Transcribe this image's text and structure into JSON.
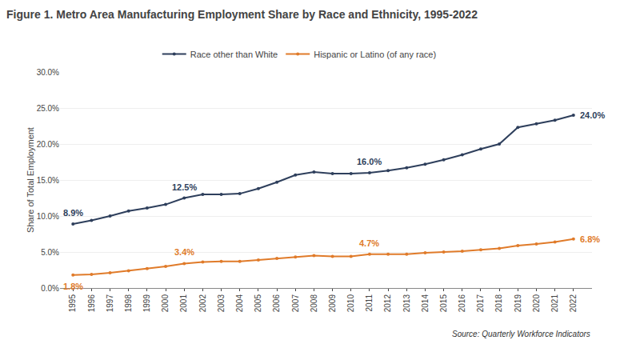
{
  "chart_data": {
    "type": "line",
    "title": "Figure 1. Metro Area Manufacturing Employment Share by Race and Ethnicity, 1995-2022",
    "ylabel": "Share of Total Employment",
    "source": "Source: Quarterly Workforce Indicators",
    "x": [
      1995,
      1996,
      1997,
      1998,
      1999,
      2000,
      2001,
      2002,
      2003,
      2004,
      2005,
      2006,
      2007,
      2008,
      2009,
      2010,
      2011,
      2012,
      2013,
      2014,
      2015,
      2016,
      2017,
      2018,
      2019,
      2020,
      2021,
      2022
    ],
    "series": [
      {
        "name": "Race other than White",
        "color": "#2E3F5C",
        "marker": "o",
        "line_style": "solid",
        "values": [
          0.089,
          0.094,
          0.1,
          0.107,
          0.111,
          0.116,
          0.125,
          0.13,
          0.13,
          0.131,
          0.138,
          0.147,
          0.157,
          0.161,
          0.159,
          0.159,
          0.16,
          0.163,
          0.167,
          0.172,
          0.178,
          0.185,
          0.193,
          0.2,
          0.223,
          0.228,
          0.233,
          0.24
        ],
        "annotations": [
          {
            "x": 1995,
            "y": 0.089,
            "text": "8.9%"
          },
          {
            "x": 2001,
            "y": 0.125,
            "text": "12.5%"
          },
          {
            "x": 2011,
            "y": 0.16,
            "text": "16.0%"
          },
          {
            "x": 2022,
            "y": 0.24,
            "text": "24.0%"
          }
        ]
      },
      {
        "name": "Hispanic or Latino (of any race)",
        "color": "#E07B2A",
        "marker": "o",
        "line_style": "solid",
        "values": [
          0.018,
          0.019,
          0.021,
          0.024,
          0.027,
          0.03,
          0.034,
          0.036,
          0.037,
          0.037,
          0.039,
          0.041,
          0.043,
          0.045,
          0.044,
          0.044,
          0.047,
          0.047,
          0.047,
          0.049,
          0.05,
          0.051,
          0.053,
          0.055,
          0.059,
          0.061,
          0.064,
          0.068
        ],
        "annotations": [
          {
            "x": 1995,
            "y": 0.018,
            "text": "1.8%"
          },
          {
            "x": 2001,
            "y": 0.034,
            "text": "3.4%"
          },
          {
            "x": 2011,
            "y": 0.047,
            "text": "4.7%"
          },
          {
            "x": 2022,
            "y": 0.068,
            "text": "6.8%"
          }
        ]
      }
    ],
    "xlim": [
      1994.3,
      2023.0
    ],
    "xticks": [
      1995,
      1996,
      1997,
      1998,
      1999,
      2000,
      2001,
      2002,
      2003,
      2004,
      2005,
      2006,
      2007,
      2008,
      2009,
      2010,
      2011,
      2012,
      2013,
      2014,
      2015,
      2016,
      2017,
      2018,
      2019,
      2020,
      2021,
      2022
    ],
    "ylim": [
      0.0,
      0.3
    ],
    "yticks": [
      {
        "value": 0.0,
        "label": "0.0%"
      },
      {
        "value": 0.05,
        "label": "5.0%"
      },
      {
        "value": 0.1,
        "label": "10.0%"
      },
      {
        "value": 0.15,
        "label": "15.0%"
      },
      {
        "value": 0.2,
        "label": "20.0%"
      },
      {
        "value": 0.25,
        "label": "25.0%"
      },
      {
        "value": 0.3,
        "label": "30.0%"
      }
    ],
    "grid": true,
    "legend": "upper center"
  }
}
